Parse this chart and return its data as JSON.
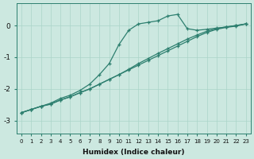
{
  "xlabel": "Humidex (Indice chaleur)",
  "ylabel": "",
  "bg_color": "#cce8e0",
  "line_color": "#2d7f6f",
  "grid_color": "#aad4c8",
  "xlim": [
    -0.5,
    23.5
  ],
  "ylim": [
    -3.4,
    0.7
  ],
  "xticks": [
    0,
    1,
    2,
    3,
    4,
    5,
    6,
    7,
    8,
    9,
    10,
    11,
    12,
    13,
    14,
    15,
    16,
    17,
    18,
    19,
    20,
    21,
    22,
    23
  ],
  "yticks": [
    0,
    -1,
    -2,
    -3
  ],
  "line1_x": [
    0,
    1,
    2,
    3,
    4,
    5,
    6,
    7,
    8,
    9,
    10,
    11,
    12,
    13,
    14,
    15,
    16,
    17,
    18,
    19,
    20,
    21,
    22,
    23
  ],
  "line1_y": [
    -2.75,
    -2.65,
    -2.55,
    -2.45,
    -2.3,
    -2.2,
    -2.05,
    -1.85,
    -1.55,
    -1.2,
    -0.6,
    -0.15,
    0.05,
    0.1,
    0.15,
    0.3,
    0.35,
    -0.1,
    -0.15,
    -0.12,
    -0.08,
    -0.05,
    0.0,
    0.05
  ],
  "line2_x": [
    0,
    1,
    2,
    3,
    4,
    5,
    6,
    7,
    8,
    9,
    10,
    11,
    12,
    13,
    14,
    15,
    16,
    17,
    18,
    19,
    20,
    21,
    22,
    23
  ],
  "line2_y": [
    -2.75,
    -2.65,
    -2.55,
    -2.48,
    -2.35,
    -2.25,
    -2.12,
    -2.0,
    -1.85,
    -1.7,
    -1.55,
    -1.4,
    -1.25,
    -1.1,
    -0.95,
    -0.8,
    -0.65,
    -0.5,
    -0.35,
    -0.22,
    -0.12,
    -0.06,
    -0.02,
    0.05
  ],
  "line3_x": [
    0,
    1,
    2,
    3,
    4,
    5,
    6,
    7,
    8,
    9,
    10,
    11,
    12,
    13,
    14,
    15,
    16,
    17,
    18,
    19,
    20,
    21,
    22,
    23
  ],
  "line3_y": [
    -2.75,
    -2.65,
    -2.55,
    -2.48,
    -2.35,
    -2.25,
    -2.12,
    -2.0,
    -1.85,
    -1.7,
    -1.55,
    -1.38,
    -1.2,
    -1.04,
    -0.88,
    -0.73,
    -0.58,
    -0.43,
    -0.3,
    -0.18,
    -0.1,
    -0.04,
    0.0,
    0.05
  ]
}
